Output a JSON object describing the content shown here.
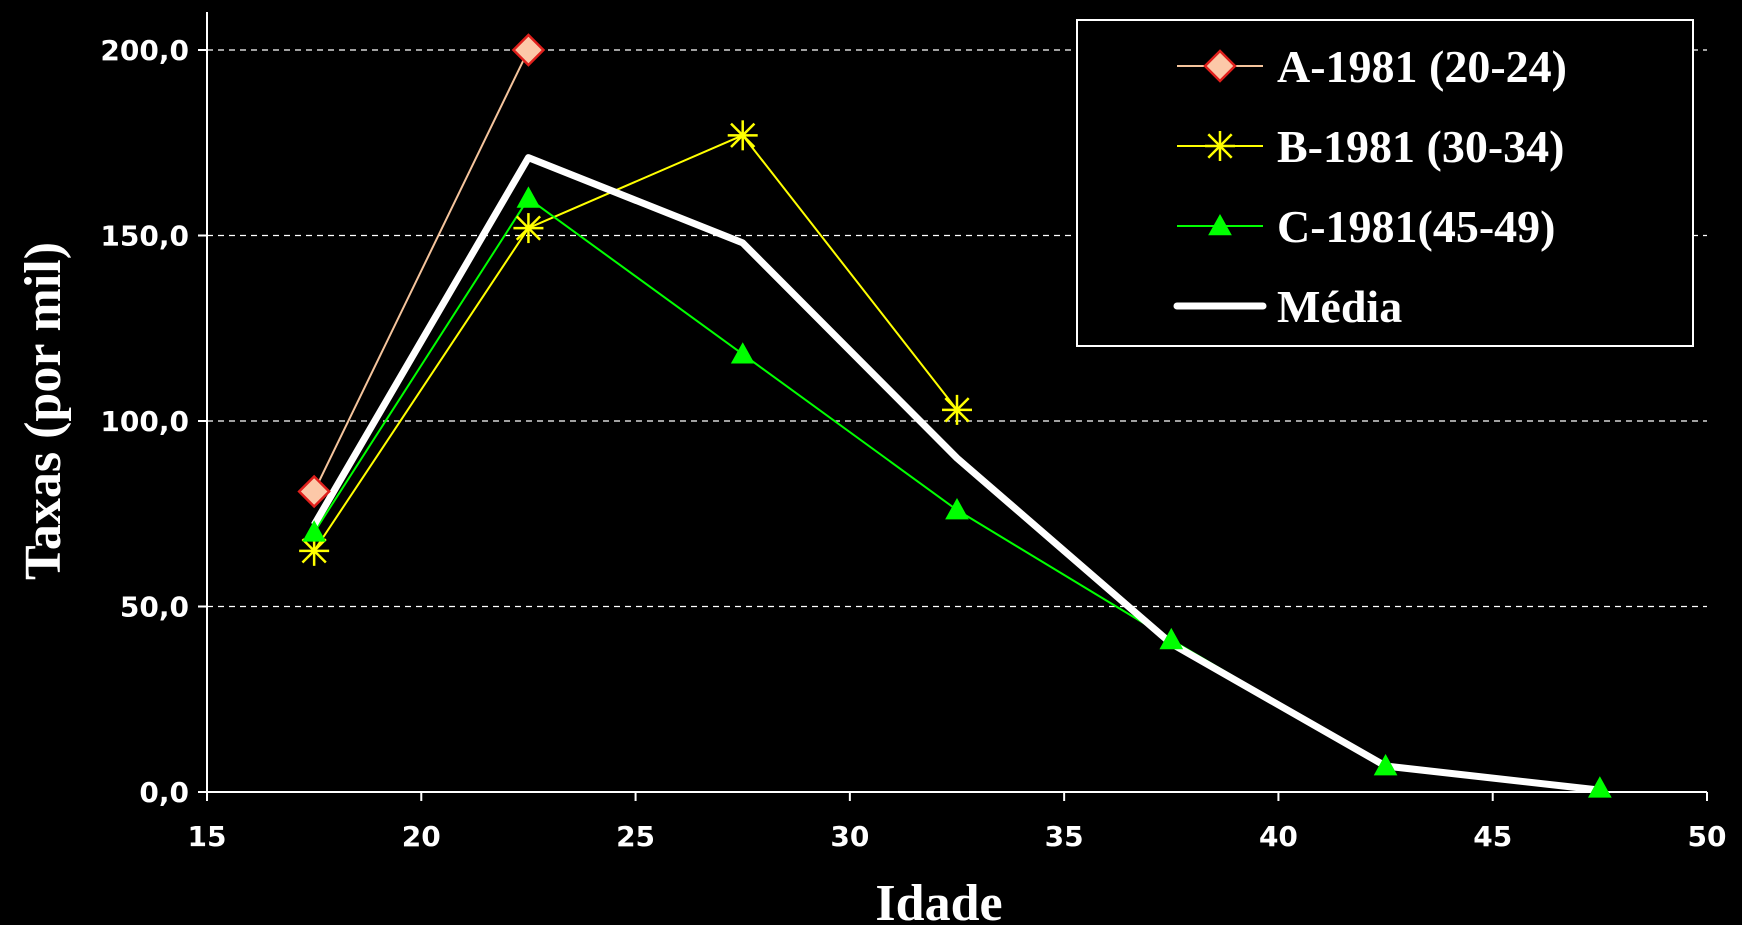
{
  "chart_data": {
    "type": "line",
    "title": "",
    "xlabel": "Idade",
    "ylabel": "Taxas (por mil)",
    "xlim": [
      15,
      50
    ],
    "ylim": [
      0,
      200
    ],
    "xticks": [
      15,
      20,
      25,
      30,
      35,
      40,
      45,
      50
    ],
    "yticks": [
      0,
      50,
      100,
      150,
      200
    ],
    "xtick_labels": [
      "15",
      "20",
      "25",
      "30",
      "35",
      "40",
      "45",
      "50"
    ],
    "ytick_labels": [
      "0,0",
      "50,0",
      "100,0",
      "150,0",
      "200,0"
    ],
    "grid": "horizontal dashed",
    "legend_position": "top-right",
    "series": [
      {
        "name": "A-1981 (20-24)",
        "color": "#f5c49c",
        "marker": "diamond",
        "marker_fill": "#fcc8a8",
        "marker_stroke": "#e0201c",
        "x": [
          17.5,
          22.5
        ],
        "y": [
          81,
          200
        ]
      },
      {
        "name": "B-1981 (30-34)",
        "color": "#ffff00",
        "marker": "asterisk",
        "x": [
          17.5,
          22.5,
          27.5,
          32.5
        ],
        "y": [
          65,
          152,
          177,
          103
        ]
      },
      {
        "name": "C-1981(45-49)",
        "color": "#00ff00",
        "marker": "triangle",
        "x": [
          17.5,
          22.5,
          27.5,
          32.5,
          37.5,
          42.5,
          47.5
        ],
        "y": [
          70,
          160,
          118,
          76,
          41,
          7,
          1
        ]
      },
      {
        "name": "Média",
        "color": "#ffffff",
        "marker": "none",
        "x": [
          17.5,
          22.5,
          27.5,
          32.5,
          37.5,
          42.5,
          47.5
        ],
        "y": [
          72,
          171,
          148,
          90,
          40,
          7,
          0.5
        ]
      }
    ]
  }
}
